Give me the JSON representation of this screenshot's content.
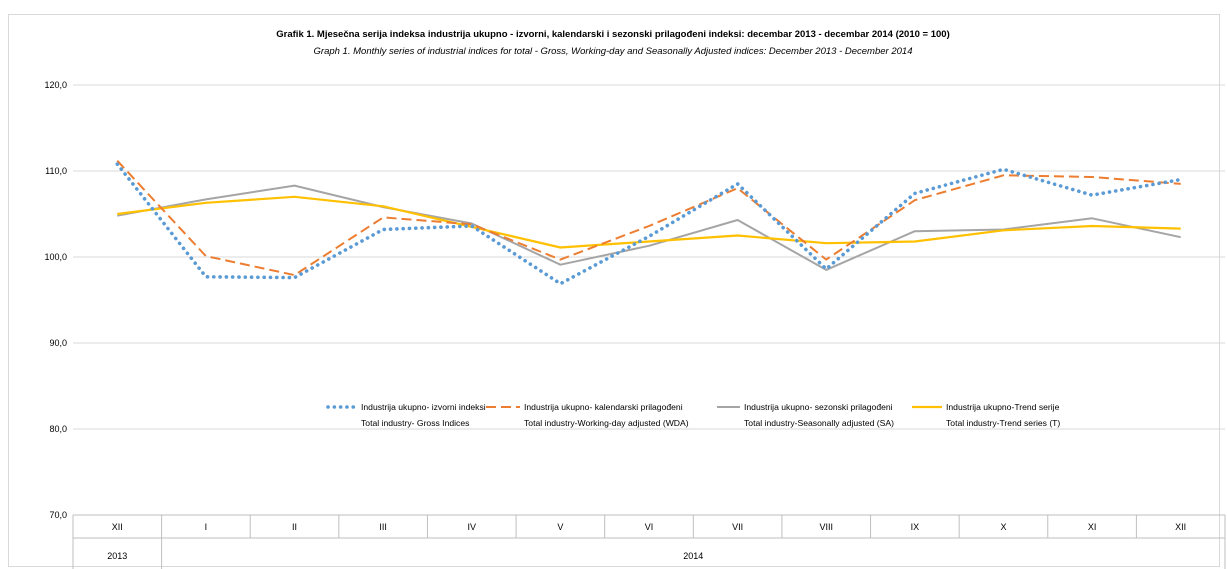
{
  "chart_data": {
    "type": "line",
    "title": "Grafik 1. Mjesečna serija indeksa industrija ukupno - izvorni, kalendarski i sezonski prilagođeni indeksi: decembar 2013 - decembar 2014 (2010 = 100)",
    "subtitle": "Graph 1. Monthly series of industrial indices for total - Gross, Working-day and Seasonally Adjusted indices: December 2013 - December 2014",
    "categories": [
      "XII",
      "I",
      "II",
      "III",
      "IV",
      "V",
      "VI",
      "VII",
      "VIII",
      "IX",
      "X",
      "XI",
      "XII"
    ],
    "year_labels": [
      {
        "label": "2013",
        "start": 0,
        "end": 0
      },
      {
        "label": "2014",
        "start": 1,
        "end": 12
      }
    ],
    "ylim": [
      70,
      120
    ],
    "yticks": [
      70,
      80,
      90,
      100,
      110,
      120
    ],
    "ytick_labels": [
      "70,0",
      "80,0",
      "90,0",
      "100,0",
      "110,0",
      "120,0"
    ],
    "grid": true,
    "legend_position": "center",
    "series": [
      {
        "name": "Industrija ukupno- izvorni indeksi",
        "name_en": "Total industry- Gross Indices",
        "style": "dotted",
        "color": "#5b9bd5",
        "values": [
          110.8,
          97.7,
          97.6,
          103.2,
          103.6,
          96.9,
          102.4,
          108.5,
          98.6,
          107.4,
          110.2,
          107.2,
          109.0
        ]
      },
      {
        "name": "Industrija ukupno- kalendarski prilagođeni",
        "name_en": "Total industry-Working-day adjusted (WDA)",
        "style": "dashed",
        "color": "#ed7d31",
        "values": [
          111.2,
          100.1,
          97.9,
          104.6,
          103.8,
          99.7,
          103.6,
          108.0,
          99.7,
          106.6,
          109.5,
          109.3,
          108.5
        ]
      },
      {
        "name": "Industrija ukupno- sezonski prilagođeni",
        "name_en": "Total industry-Seasonally adjusted (SA)",
        "style": "solid",
        "color": "#a5a5a5",
        "values": [
          104.8,
          106.7,
          108.3,
          105.8,
          103.9,
          99.1,
          101.3,
          104.3,
          98.5,
          103.0,
          103.2,
          104.5,
          102.3
        ]
      },
      {
        "name": "Industrija ukupno-Trend serije",
        "name_en": "Total industry-Trend series (T)",
        "style": "solid",
        "color": "#ffc000",
        "values": [
          105.0,
          106.3,
          107.0,
          105.9,
          103.5,
          101.1,
          101.8,
          102.5,
          101.6,
          101.8,
          103.1,
          103.6,
          103.3
        ]
      }
    ]
  }
}
